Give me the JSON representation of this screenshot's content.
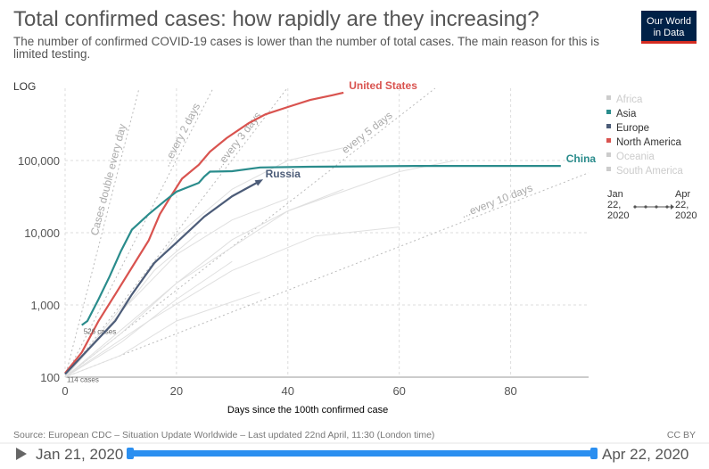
{
  "logo": {
    "line1": "Our World",
    "line2": "in Data"
  },
  "chart_data": {
    "type": "line",
    "title": "Total confirmed cases: how rapidly are they increasing?",
    "subtitle": "The number of confirmed COVID-19 cases is lower than the number of total cases. The main reason for this is limited testing.",
    "scale_label": "LOG",
    "log_scale": true,
    "grid": true,
    "x_label": "Days since the 100th confirmed case",
    "xlim": [
      0,
      94
    ],
    "ylim": [
      100,
      1000000
    ],
    "xticks": [
      0,
      20,
      40,
      60,
      80
    ],
    "yticks": [
      100,
      {
        "value": 1000,
        "label": "1,000"
      },
      {
        "value": 10000,
        "label": "10,000"
      },
      {
        "value": 100000,
        "label": "100,000"
      }
    ],
    "doubling_lines": [
      {
        "label": "Cases double every day",
        "days": 1
      },
      {
        "label": "...every 2 days",
        "days": 2
      },
      {
        "label": "...every 3 days",
        "days": 3
      },
      {
        "label": "every 5 days",
        "days": 5
      },
      {
        "label": "...every 10 days",
        "days": 10
      }
    ],
    "background_series": [
      {
        "color": "#e0e0e0",
        "x": [
          0,
          10,
          20,
          30,
          40
        ],
        "values": [
          100,
          800,
          5000,
          15000,
          30000
        ]
      },
      {
        "color": "#e0e0e0",
        "x": [
          0,
          10,
          20,
          30,
          40,
          50
        ],
        "values": [
          100,
          400,
          2000,
          8000,
          20000,
          40000
        ]
      },
      {
        "color": "#e0e0e0",
        "x": [
          0,
          10,
          20,
          30
        ],
        "values": [
          100,
          300,
          1200,
          4000
        ]
      },
      {
        "color": "#e0e0e0",
        "x": [
          0,
          15,
          30,
          45,
          60
        ],
        "values": [
          100,
          600,
          3000,
          9000,
          12000
        ]
      },
      {
        "color": "#e0e0e0",
        "x": [
          0,
          10,
          20,
          30,
          40,
          50
        ],
        "values": [
          100,
          900,
          9000,
          40000,
          100000,
          150000
        ]
      },
      {
        "color": "#e0e0e0",
        "x": [
          0,
          10,
          20,
          35
        ],
        "values": [
          100,
          200,
          600,
          1500
        ]
      },
      {
        "color": "#e0e0e0",
        "x": [
          0,
          20,
          40,
          60,
          70
        ],
        "values": [
          100,
          2000,
          20000,
          70000,
          100000
        ]
      },
      {
        "color": "#e0e0e0",
        "x": [
          0,
          8,
          16,
          24
        ],
        "values": [
          100,
          500,
          3000,
          10000
        ]
      }
    ],
    "series": [
      {
        "name": "United States",
        "color": "#d9534f",
        "start_label": "114 cases",
        "x": [
          0,
          3,
          6,
          9,
          12,
          15,
          17,
          19,
          21,
          24,
          26,
          29,
          33,
          36,
          40,
          44,
          48,
          50
        ],
        "values": [
          114,
          220,
          600,
          1400,
          3300,
          7800,
          18000,
          32000,
          56000,
          87000,
          132000,
          204000,
          330000,
          436000,
          550000,
          690000,
          800000,
          870000
        ]
      },
      {
        "name": "China",
        "color": "#2a8c8c",
        "start_label": "526 cases",
        "x": [
          3,
          4,
          6,
          8,
          10,
          12,
          15,
          18,
          20,
          24,
          25,
          26,
          30,
          35,
          44,
          63,
          89
        ],
        "values": [
          526,
          600,
          1200,
          2500,
          5500,
          11000,
          18000,
          28000,
          37000,
          49000,
          60000,
          70000,
          71000,
          80000,
          82000,
          84000,
          84000
        ]
      },
      {
        "name": "Russia",
        "color": "#4c5c78",
        "end_marker": "arrow",
        "x": [
          0,
          4,
          9,
          12,
          16,
          20,
          25,
          30,
          35
        ],
        "values": [
          110,
          235,
          600,
          1400,
          3800,
          7300,
          16700,
          32000,
          52000
        ]
      }
    ],
    "legend": {
      "position": "right",
      "items": [
        {
          "name": "Africa",
          "color": "#cccccc",
          "active": false
        },
        {
          "name": "Asia",
          "color": "#2a8c8c",
          "active": true
        },
        {
          "name": "Europe",
          "color": "#4c5c78",
          "active": true
        },
        {
          "name": "North America",
          "color": "#d9534f",
          "active": true
        },
        {
          "name": "Oceania",
          "color": "#cccccc",
          "active": false
        },
        {
          "name": "South America",
          "color": "#cccccc",
          "active": false
        }
      ],
      "start": "Jan 22, 2020",
      "end": "Apr 22, 2020"
    }
  },
  "footer": {
    "source": "Source: European CDC – Situation Update Worldwide – Last updated 22nd April, 11:30 (London time)",
    "license": "CC BY"
  },
  "timeline": {
    "start": "Jan 21, 2020",
    "end": "Apr 22, 2020"
  }
}
